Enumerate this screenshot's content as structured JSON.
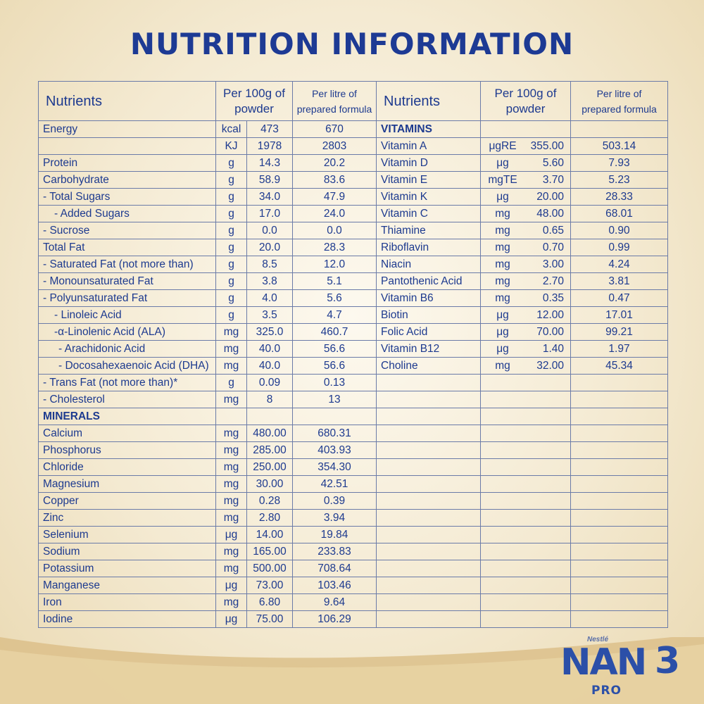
{
  "title": "NUTRITION INFORMATION",
  "header": {
    "nutrients": "Nutrients",
    "per100_line1": "Per 100g of",
    "per100_line2": "powder",
    "perlitre_line1": "Per litre of",
    "perlitre_line2": "prepared formula"
  },
  "left_rows": [
    {
      "name": "Energy",
      "unit": "kcal",
      "per100": "473",
      "perlitre": "670",
      "indent": 1,
      "section": false
    },
    {
      "name": "",
      "unit": "KJ",
      "per100": "1978",
      "perlitre": "2803",
      "indent": 1,
      "section": false
    },
    {
      "name": "Protein",
      "unit": "g",
      "per100": "14.3",
      "perlitre": "20.2",
      "indent": 1,
      "section": false
    },
    {
      "name": "Carbohydrate",
      "unit": "g",
      "per100": "58.9",
      "perlitre": "83.6",
      "indent": 1,
      "section": false
    },
    {
      "name": "- Total Sugars",
      "unit": "g",
      "per100": "34.0",
      "perlitre": "47.9",
      "indent": 1,
      "section": false
    },
    {
      "name": "- Added Sugars",
      "unit": "g",
      "per100": "17.0",
      "perlitre": "24.0",
      "indent": 2,
      "section": false
    },
    {
      "name": "- Sucrose",
      "unit": "g",
      "per100": "0.0",
      "perlitre": "0.0",
      "indent": 1,
      "section": false
    },
    {
      "name": "Total Fat",
      "unit": "g",
      "per100": "20.0",
      "perlitre": "28.3",
      "indent": 1,
      "section": false
    },
    {
      "name": "- Saturated Fat (not more than)",
      "unit": "g",
      "per100": "8.5",
      "perlitre": "12.0",
      "indent": 1,
      "section": false
    },
    {
      "name": "- Monounsaturated Fat",
      "unit": "g",
      "per100": "3.8",
      "perlitre": "5.1",
      "indent": 1,
      "section": false
    },
    {
      "name": "- Polyunsaturated Fat",
      "unit": "g",
      "per100": "4.0",
      "perlitre": "5.6",
      "indent": 1,
      "section": false
    },
    {
      "name": "- Linoleic Acid",
      "unit": "g",
      "per100": "3.5",
      "perlitre": "4.7",
      "indent": 2,
      "section": false
    },
    {
      "name": "-α-Linolenic Acid (ALA)",
      "unit": "mg",
      "per100": "325.0",
      "perlitre": "460.7",
      "indent": 2,
      "section": false
    },
    {
      "name": "- Arachidonic Acid",
      "unit": "mg",
      "per100": "40.0",
      "perlitre": "56.6",
      "indent": 3,
      "section": false
    },
    {
      "name": "- Docosahexaenoic Acid (DHA)",
      "unit": "mg",
      "per100": "40.0",
      "perlitre": "56.6",
      "indent": 3,
      "section": false
    },
    {
      "name": "- Trans Fat (not more than)*",
      "unit": "g",
      "per100": "0.09",
      "perlitre": "0.13",
      "indent": 1,
      "section": false
    },
    {
      "name": "- Cholesterol",
      "unit": "mg",
      "per100": "8",
      "perlitre": "13",
      "indent": 1,
      "section": false
    },
    {
      "name": "MINERALS",
      "unit": "",
      "per100": "",
      "perlitre": "",
      "indent": 1,
      "section": true
    },
    {
      "name": "Calcium",
      "unit": "mg",
      "per100": "480.00",
      "perlitre": "680.31",
      "indent": 1,
      "section": false
    },
    {
      "name": "Phosphorus",
      "unit": "mg",
      "per100": "285.00",
      "perlitre": "403.93",
      "indent": 1,
      "section": false
    },
    {
      "name": "Chloride",
      "unit": "mg",
      "per100": "250.00",
      "perlitre": "354.30",
      "indent": 1,
      "section": false
    },
    {
      "name": "Magnesium",
      "unit": "mg",
      "per100": "30.00",
      "perlitre": "42.51",
      "indent": 1,
      "section": false
    },
    {
      "name": "Copper",
      "unit": "mg",
      "per100": "0.28",
      "perlitre": "0.39",
      "indent": 1,
      "section": false
    },
    {
      "name": "Zinc",
      "unit": "mg",
      "per100": "2.80",
      "perlitre": "3.94",
      "indent": 1,
      "section": false
    },
    {
      "name": "Selenium",
      "unit": "μg",
      "per100": "14.00",
      "perlitre": "19.84",
      "indent": 1,
      "section": false
    },
    {
      "name": "Sodium",
      "unit": "mg",
      "per100": "165.00",
      "perlitre": "233.83",
      "indent": 1,
      "section": false
    },
    {
      "name": "Potassium",
      "unit": "mg",
      "per100": "500.00",
      "perlitre": "708.64",
      "indent": 1,
      "section": false
    },
    {
      "name": "Manganese",
      "unit": "μg",
      "per100": "73.00",
      "perlitre": "103.46",
      "indent": 1,
      "section": false
    },
    {
      "name": "Iron",
      "unit": "mg",
      "per100": "6.80",
      "perlitre": "9.64",
      "indent": 1,
      "section": false
    },
    {
      "name": "Iodine",
      "unit": "μg",
      "per100": "75.00",
      "perlitre": "106.29",
      "indent": 1,
      "section": false
    }
  ],
  "right_rows": [
    {
      "name": "VITAMINS",
      "unit": "",
      "per100": "",
      "perlitre": "",
      "section": true
    },
    {
      "name": "Vitamin A",
      "unit": "μgRE",
      "per100": "355.00",
      "perlitre": "503.14",
      "section": false
    },
    {
      "name": "Vitamin D",
      "unit": "μg",
      "per100": "5.60",
      "perlitre": "7.93",
      "section": false
    },
    {
      "name": "Vitamin E",
      "unit": "mgTE",
      "per100": "3.70",
      "perlitre": "5.23",
      "section": false
    },
    {
      "name": "Vitamin K",
      "unit": "μg",
      "per100": "20.00",
      "perlitre": "28.33",
      "section": false
    },
    {
      "name": "Vitamin C",
      "unit": "mg",
      "per100": "48.00",
      "perlitre": "68.01",
      "section": false
    },
    {
      "name": "Thiamine",
      "unit": "mg",
      "per100": "0.65",
      "perlitre": "0.90",
      "section": false
    },
    {
      "name": "Riboflavin",
      "unit": "mg",
      "per100": "0.70",
      "perlitre": "0.99",
      "section": false
    },
    {
      "name": "Niacin",
      "unit": "mg",
      "per100": "3.00",
      "perlitre": "4.24",
      "section": false
    },
    {
      "name": "Pantothenic Acid",
      "unit": "mg",
      "per100": "2.70",
      "perlitre": "3.81",
      "section": false
    },
    {
      "name": "Vitamin B6",
      "unit": "mg",
      "per100": "0.35",
      "perlitre": "0.47",
      "section": false
    },
    {
      "name": "Biotin",
      "unit": "μg",
      "per100": "12.00",
      "perlitre": "17.01",
      "section": false
    },
    {
      "name": "Folic Acid",
      "unit": "μg",
      "per100": "70.00",
      "perlitre": "99.21",
      "section": false
    },
    {
      "name": "Vitamin B12",
      "unit": "μg",
      "per100": "1.40",
      "perlitre": "1.97",
      "section": false
    },
    {
      "name": "Choline",
      "unit": "mg",
      "per100": "32.00",
      "perlitre": "45.34",
      "section": false
    }
  ],
  "logo": {
    "brand_small": "Nestlé",
    "name": "NAN",
    "sub": "PRO",
    "stage": "3"
  },
  "colors": {
    "text": "#1d3a8f",
    "border": "#6b7ba8",
    "logo": "#2b4fa8",
    "gold": "#d9b66a"
  }
}
